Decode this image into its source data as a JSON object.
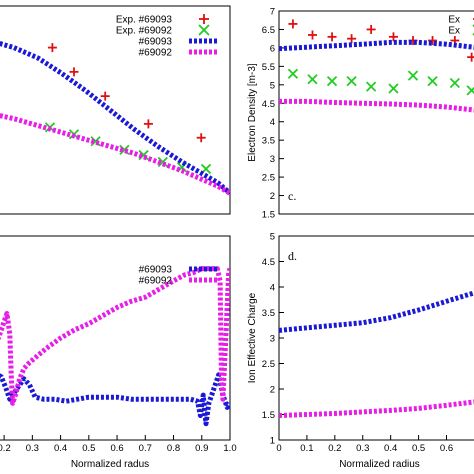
{
  "colors": {
    "s69093": "#1a1ad6",
    "s69092": "#e81ee8",
    "exp69093": "#e01010",
    "exp69092": "#22cc22"
  },
  "chart_data": [
    {
      "id": "top-left",
      "type": "line",
      "xlim": [
        0,
        1
      ],
      "ylim": [
        1,
        7
      ],
      "xticks": [],
      "yticks": [],
      "xlabel": "",
      "ylabel": "",
      "panel_label": "",
      "legend": [
        "Exp. #69093",
        "Exp. #69092",
        "#69093",
        "#69092"
      ],
      "series": [
        {
          "name": "Exp. #69093",
          "kind": "plus",
          "color": "#e01010",
          "points": [
            [
              0.26,
              5.8
            ],
            [
              0.35,
              5.1
            ],
            [
              0.48,
              4.4
            ],
            [
              0.66,
              3.6
            ],
            [
              0.88,
              3.2
            ]
          ]
        },
        {
          "name": "Exp. #69092",
          "kind": "x",
          "color": "#22cc22",
          "points": [
            [
              0.25,
              3.5
            ],
            [
              0.35,
              3.3
            ],
            [
              0.44,
              3.1
            ],
            [
              0.56,
              2.85
            ],
            [
              0.64,
              2.7
            ],
            [
              0.72,
              2.5
            ],
            [
              0.8,
              2.35
            ],
            [
              0.9,
              2.3
            ]
          ]
        },
        {
          "name": "#69093",
          "kind": "line",
          "color": "#1a1ad6",
          "points": [
            [
              0,
              6.0
            ],
            [
              0.1,
              5.8
            ],
            [
              0.2,
              5.5
            ],
            [
              0.3,
              5.05
            ],
            [
              0.4,
              4.55
            ],
            [
              0.5,
              4.0
            ],
            [
              0.6,
              3.45
            ],
            [
              0.7,
              2.95
            ],
            [
              0.8,
              2.5
            ],
            [
              0.9,
              2.1
            ],
            [
              0.95,
              1.9
            ],
            [
              1.0,
              1.6
            ]
          ]
        },
        {
          "name": "#69092",
          "kind": "line",
          "color": "#e81ee8",
          "points": [
            [
              0,
              3.9
            ],
            [
              0.1,
              3.75
            ],
            [
              0.2,
              3.55
            ],
            [
              0.3,
              3.35
            ],
            [
              0.4,
              3.15
            ],
            [
              0.5,
              2.95
            ],
            [
              0.6,
              2.75
            ],
            [
              0.7,
              2.5
            ],
            [
              0.8,
              2.25
            ],
            [
              0.9,
              1.95
            ],
            [
              0.95,
              1.8
            ],
            [
              1.0,
              1.6
            ]
          ]
        }
      ]
    },
    {
      "id": "top-right",
      "type": "line",
      "xlim": [
        0,
        0.72
      ],
      "ylim": [
        1.5,
        7
      ],
      "xticks": [],
      "yticks": [
        "1.5",
        "2",
        "2.5",
        "3",
        "3.5",
        "4",
        "4.5",
        "5",
        "5.5",
        "6",
        "6.5",
        "7"
      ],
      "xlabel": "",
      "ylabel": "Electron Density [m-3]",
      "panel_label": "c.",
      "legend": [
        "Ex",
        "Ex"
      ],
      "series": [
        {
          "name": "Exp. #69093",
          "kind": "plus",
          "color": "#e01010",
          "points": [
            [
              0.05,
              6.65
            ],
            [
              0.12,
              6.35
            ],
            [
              0.19,
              6.3
            ],
            [
              0.26,
              6.25
            ],
            [
              0.33,
              6.5
            ],
            [
              0.41,
              6.3
            ],
            [
              0.48,
              6.2
            ],
            [
              0.55,
              6.2
            ],
            [
              0.63,
              6.2
            ],
            [
              0.69,
              5.75
            ]
          ]
        },
        {
          "name": "Exp. #69092",
          "kind": "x",
          "color": "#22cc22",
          "points": [
            [
              0.05,
              5.3
            ],
            [
              0.12,
              5.15
            ],
            [
              0.19,
              5.1
            ],
            [
              0.26,
              5.1
            ],
            [
              0.33,
              4.95
            ],
            [
              0.41,
              4.9
            ],
            [
              0.48,
              5.25
            ],
            [
              0.55,
              5.1
            ],
            [
              0.63,
              5.05
            ],
            [
              0.69,
              4.85
            ]
          ]
        },
        {
          "name": "#69093",
          "kind": "line",
          "color": "#1a1ad6",
          "points": [
            [
              0,
              5.98
            ],
            [
              0.1,
              6.02
            ],
            [
              0.2,
              6.06
            ],
            [
              0.3,
              6.1
            ],
            [
              0.4,
              6.15
            ],
            [
              0.5,
              6.15
            ],
            [
              0.6,
              6.1
            ],
            [
              0.72,
              6.0
            ]
          ]
        },
        {
          "name": "#69092",
          "kind": "line",
          "color": "#e81ee8",
          "points": [
            [
              0,
              4.55
            ],
            [
              0.1,
              4.55
            ],
            [
              0.2,
              4.52
            ],
            [
              0.3,
              4.5
            ],
            [
              0.4,
              4.48
            ],
            [
              0.5,
              4.45
            ],
            [
              0.6,
              4.4
            ],
            [
              0.72,
              4.3
            ]
          ]
        }
      ]
    },
    {
      "id": "bottom-left",
      "type": "line",
      "xlim": [
        0.15,
        1.0
      ],
      "ylim": [
        0,
        1
      ],
      "xticks": [
        "0.2",
        "0.3",
        "0.4",
        "0.5",
        "0.6",
        "0.7",
        "0.8",
        "0.9",
        "1.0"
      ],
      "yticks": [],
      "xlabel": "Normalized radus",
      "ylabel": "",
      "panel_label": "",
      "legend": [
        "#69093",
        "#69092"
      ],
      "series": [
        {
          "name": "#69093",
          "kind": "line",
          "color": "#1a1ad6",
          "points": [
            [
              0.15,
              0.34
            ],
            [
              0.19,
              0.31
            ],
            [
              0.205,
              0.26
            ],
            [
              0.22,
              0.2
            ],
            [
              0.25,
              0.26
            ],
            [
              0.27,
              0.3
            ],
            [
              0.29,
              0.27
            ],
            [
              0.31,
              0.21
            ],
            [
              0.34,
              0.2
            ],
            [
              0.38,
              0.2
            ],
            [
              0.42,
              0.19
            ],
            [
              0.46,
              0.2
            ],
            [
              0.5,
              0.21
            ],
            [
              0.55,
              0.21
            ],
            [
              0.6,
              0.21
            ],
            [
              0.65,
              0.2
            ],
            [
              0.7,
              0.2
            ],
            [
              0.75,
              0.2
            ],
            [
              0.8,
              0.2
            ],
            [
              0.86,
              0.2
            ],
            [
              0.885,
              0.19
            ],
            [
              0.895,
              0.12
            ],
            [
              0.905,
              0.22
            ],
            [
              0.915,
              0.08
            ],
            [
              0.925,
              0.18
            ],
            [
              0.94,
              0.24
            ],
            [
              0.96,
              0.32
            ],
            [
              0.975,
              0.22
            ],
            [
              0.99,
              0.16
            ],
            [
              1.0,
              0.18
            ]
          ]
        },
        {
          "name": "#69092",
          "kind": "line",
          "color": "#e81ee8",
          "points": [
            [
              0.15,
              0.46
            ],
            [
              0.18,
              0.5
            ],
            [
              0.2,
              0.58
            ],
            [
              0.21,
              0.62
            ],
            [
              0.22,
              0.52
            ],
            [
              0.225,
              0.32
            ],
            [
              0.23,
              0.18
            ],
            [
              0.24,
              0.22
            ],
            [
              0.255,
              0.3
            ],
            [
              0.27,
              0.35
            ],
            [
              0.29,
              0.38
            ],
            [
              0.35,
              0.45
            ],
            [
              0.4,
              0.5
            ],
            [
              0.45,
              0.54
            ],
            [
              0.5,
              0.57
            ],
            [
              0.55,
              0.61
            ],
            [
              0.6,
              0.65
            ],
            [
              0.65,
              0.68
            ],
            [
              0.7,
              0.7
            ],
            [
              0.75,
              0.74
            ],
            [
              0.8,
              0.78
            ],
            [
              0.84,
              0.81
            ],
            [
              0.87,
              0.82
            ],
            [
              0.9,
              0.84
            ],
            [
              0.93,
              0.84
            ],
            [
              0.955,
              0.84
            ],
            [
              0.965,
              0.78
            ],
            [
              0.97,
              0.3
            ],
            [
              0.975,
              0.2
            ],
            [
              0.985,
              0.5
            ],
            [
              0.995,
              0.82
            ],
            [
              1.0,
              0.84
            ]
          ]
        }
      ]
    },
    {
      "id": "bottom-right",
      "type": "line",
      "xlim": [
        0,
        0.72
      ],
      "ylim": [
        1,
        5
      ],
      "xticks": [
        "0",
        "0.1",
        "0.2",
        "0.3",
        "0.4",
        "0.5",
        "0.6"
      ],
      "yticks": [
        "1",
        "1.5",
        "2",
        "2.5",
        "3",
        "3.5",
        "4",
        "4.5",
        "5"
      ],
      "xlabel": "Normalized radius",
      "ylabel": "Ion Effective Charge",
      "panel_label": "d.",
      "legend": [],
      "series": [
        {
          "name": "#69093",
          "kind": "line",
          "color": "#1a1ad6",
          "points": [
            [
              0,
              3.15
            ],
            [
              0.1,
              3.2
            ],
            [
              0.2,
              3.25
            ],
            [
              0.3,
              3.3
            ],
            [
              0.4,
              3.4
            ],
            [
              0.5,
              3.55
            ],
            [
              0.6,
              3.72
            ],
            [
              0.72,
              3.92
            ]
          ]
        },
        {
          "name": "#69092",
          "kind": "line",
          "color": "#e81ee8",
          "points": [
            [
              0,
              1.48
            ],
            [
              0.1,
              1.5
            ],
            [
              0.2,
              1.52
            ],
            [
              0.3,
              1.55
            ],
            [
              0.4,
              1.58
            ],
            [
              0.5,
              1.62
            ],
            [
              0.6,
              1.68
            ],
            [
              0.72,
              1.76
            ]
          ]
        }
      ]
    }
  ]
}
